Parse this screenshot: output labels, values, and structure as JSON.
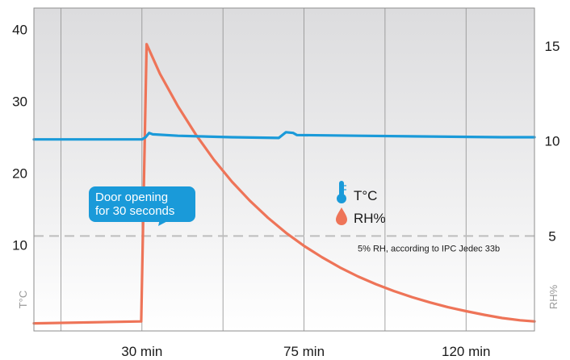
{
  "chart_data": {
    "type": "line",
    "title": "",
    "x": {
      "label": "",
      "ticks": [
        {
          "value": 30,
          "label": "30 min"
        },
        {
          "value": 75,
          "label": "75 min"
        },
        {
          "value": 120,
          "label": "120 min"
        }
      ],
      "range": [
        0,
        139
      ]
    },
    "y_left": {
      "label": "T°C",
      "ticks": [
        10,
        20,
        30,
        40
      ],
      "range": [
        -2,
        43
      ]
    },
    "y_right": {
      "label": "RH%",
      "ticks": [
        5,
        10,
        15
      ],
      "range": [
        0,
        17
      ]
    },
    "grid": true,
    "legend_placement": "center-right",
    "series": [
      {
        "name": "T°C",
        "axis": "left",
        "color": "#1a9ad9",
        "icon": "thermometer-icon",
        "points": [
          [
            0,
            24.7
          ],
          [
            20,
            24.7
          ],
          [
            30,
            24.7
          ],
          [
            31,
            25.0
          ],
          [
            32,
            25.6
          ],
          [
            33,
            25.4
          ],
          [
            40,
            25.2
          ],
          [
            55,
            25.0
          ],
          [
            68,
            24.9
          ],
          [
            70,
            25.7
          ],
          [
            72,
            25.6
          ],
          [
            73,
            25.3
          ],
          [
            90,
            25.2
          ],
          [
            110,
            25.1
          ],
          [
            130,
            25.0
          ],
          [
            139,
            25.0
          ]
        ]
      },
      {
        "name": "RH%",
        "axis": "right",
        "color": "#ee7458",
        "icon": "drop-icon",
        "points": [
          [
            0,
            0.4
          ],
          [
            29.8,
            0.5
          ],
          [
            31.3,
            15.1
          ],
          [
            35,
            13.54
          ],
          [
            40,
            11.83
          ],
          [
            45,
            10.33
          ],
          [
            50,
            9.01
          ],
          [
            55,
            7.86
          ],
          [
            60,
            6.85
          ],
          [
            65,
            5.96
          ],
          [
            70,
            5.17
          ],
          [
            75,
            4.48
          ],
          [
            80,
            3.88
          ],
          [
            85,
            3.34
          ],
          [
            90,
            2.87
          ],
          [
            95,
            2.46
          ],
          [
            100,
            2.1
          ],
          [
            105,
            1.78
          ],
          [
            110,
            1.5
          ],
          [
            115,
            1.25
          ],
          [
            120,
            1.04
          ],
          [
            125,
            0.85
          ],
          [
            130,
            0.68
          ],
          [
            135,
            0.56
          ],
          [
            139,
            0.5
          ]
        ]
      }
    ],
    "reference_line": {
      "axis": "right",
      "value": 5,
      "style": "dashed",
      "color": "#bdbdbd",
      "label": "5% RH, according to IPC Jedec 33b"
    },
    "annotations": [
      {
        "text_lines": [
          "Door opening",
          "for 30 seconds"
        ],
        "x": 30,
        "color": "#1a9ad9"
      }
    ]
  }
}
